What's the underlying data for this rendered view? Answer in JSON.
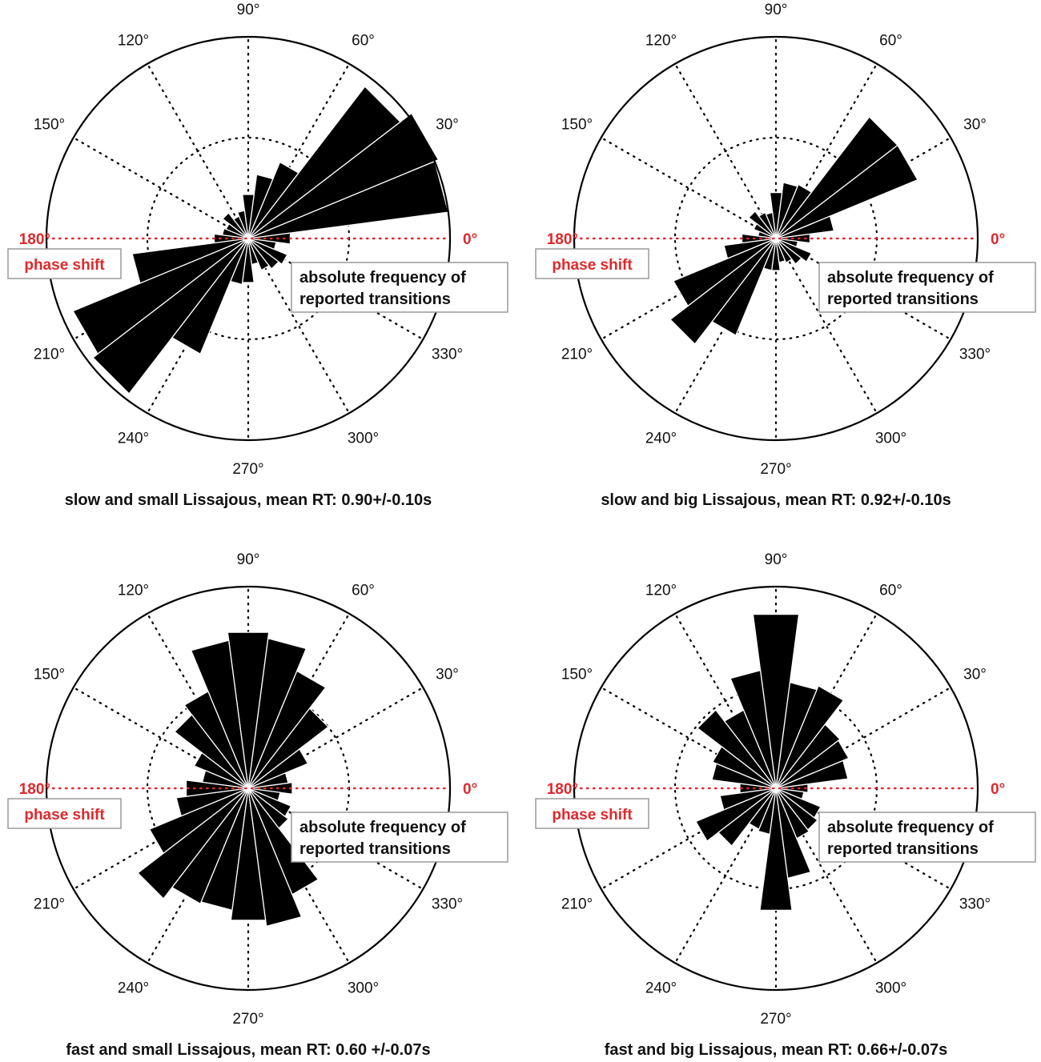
{
  "shared": {
    "angle_labels": [
      "0°",
      "30°",
      "60°",
      "90°",
      "120°",
      "150°",
      "180°",
      "210°",
      "240°",
      "270°",
      "300°",
      "330°"
    ],
    "xlabel": "phase shift",
    "rlabel_line1": "absolute frequency of",
    "rlabel_line2": "reported transitions",
    "reference_color": "#e0282b",
    "bar_color": "#000000",
    "grid": "dotted"
  },
  "chart_data": [
    {
      "type": "bar",
      "polar": true,
      "title": "slow and small Lissajous, mean RT: 0.90+/-0.10s",
      "theta_bin_width_deg": 15,
      "theta_unit": "degrees",
      "theta": [
        0,
        15,
        30,
        45,
        60,
        75,
        90,
        105,
        120,
        135,
        150,
        165,
        180,
        195,
        210,
        225,
        240,
        255,
        270,
        285,
        300,
        315,
        330,
        345
      ],
      "values": [
        0.21,
        1.0,
        1.02,
        0.95,
        0.41,
        0.32,
        0.22,
        0.14,
        0.12,
        0.16,
        0.12,
        0.13,
        0.17,
        0.58,
        0.94,
        0.97,
        0.62,
        0.23,
        0.22,
        0.13,
        0.17,
        0.19,
        0.21,
        0.14
      ],
      "r_ticks": [
        0.5
      ],
      "rlim": [
        0,
        1.0
      ]
    },
    {
      "type": "bar",
      "polar": true,
      "title": "slow and big Lissajous, mean RT: 0.92+/-0.10s",
      "theta_bin_width_deg": 15,
      "theta_unit": "degrees",
      "theta": [
        0,
        15,
        30,
        45,
        60,
        75,
        90,
        105,
        120,
        135,
        150,
        165,
        180,
        195,
        210,
        225,
        240,
        255,
        270,
        285,
        300,
        315,
        330,
        345
      ],
      "values": [
        0.17,
        0.29,
        0.76,
        0.76,
        0.29,
        0.28,
        0.23,
        0.13,
        0.14,
        0.17,
        0.12,
        0.09,
        0.17,
        0.26,
        0.55,
        0.66,
        0.52,
        0.16,
        0.16,
        0.12,
        0.13,
        0.16,
        0.19,
        0.11
      ],
      "r_ticks": [
        0.5
      ],
      "rlim": [
        0,
        1.0
      ]
    },
    {
      "type": "bar",
      "polar": true,
      "title": "fast and small Lissajous, mean RT: 0.60 +/-0.07s",
      "theta_bin_width_deg": 15,
      "theta_unit": "degrees",
      "theta": [
        0,
        15,
        30,
        45,
        60,
        75,
        90,
        105,
        120,
        135,
        150,
        165,
        180,
        195,
        210,
        225,
        240,
        255,
        270,
        285,
        300,
        315,
        330,
        345
      ],
      "values": [
        0.22,
        0.2,
        0.32,
        0.5,
        0.63,
        0.75,
        0.78,
        0.74,
        0.52,
        0.46,
        0.29,
        0.23,
        0.31,
        0.36,
        0.53,
        0.69,
        0.62,
        0.61,
        0.66,
        0.69,
        0.57,
        0.25,
        0.23,
        0.16
      ],
      "r_ticks": [
        0.5
      ],
      "rlim": [
        0,
        1.0
      ]
    },
    {
      "type": "bar",
      "polar": true,
      "title": "fast and big Lissajous, mean RT: 0.66+/-0.07s",
      "theta_bin_width_deg": 15,
      "theta_unit": "degrees",
      "theta": [
        0,
        15,
        30,
        45,
        60,
        75,
        90,
        105,
        120,
        135,
        150,
        165,
        180,
        195,
        210,
        225,
        240,
        255,
        270,
        285,
        300,
        315,
        330,
        345
      ],
      "values": [
        0.16,
        0.36,
        0.39,
        0.4,
        0.55,
        0.53,
        0.87,
        0.59,
        0.42,
        0.49,
        0.34,
        0.32,
        0.18,
        0.28,
        0.43,
        0.36,
        0.22,
        0.23,
        0.61,
        0.45,
        0.27,
        0.26,
        0.24,
        0.14
      ],
      "r_ticks": [
        0.5
      ],
      "rlim": [
        0,
        1.0
      ]
    }
  ]
}
